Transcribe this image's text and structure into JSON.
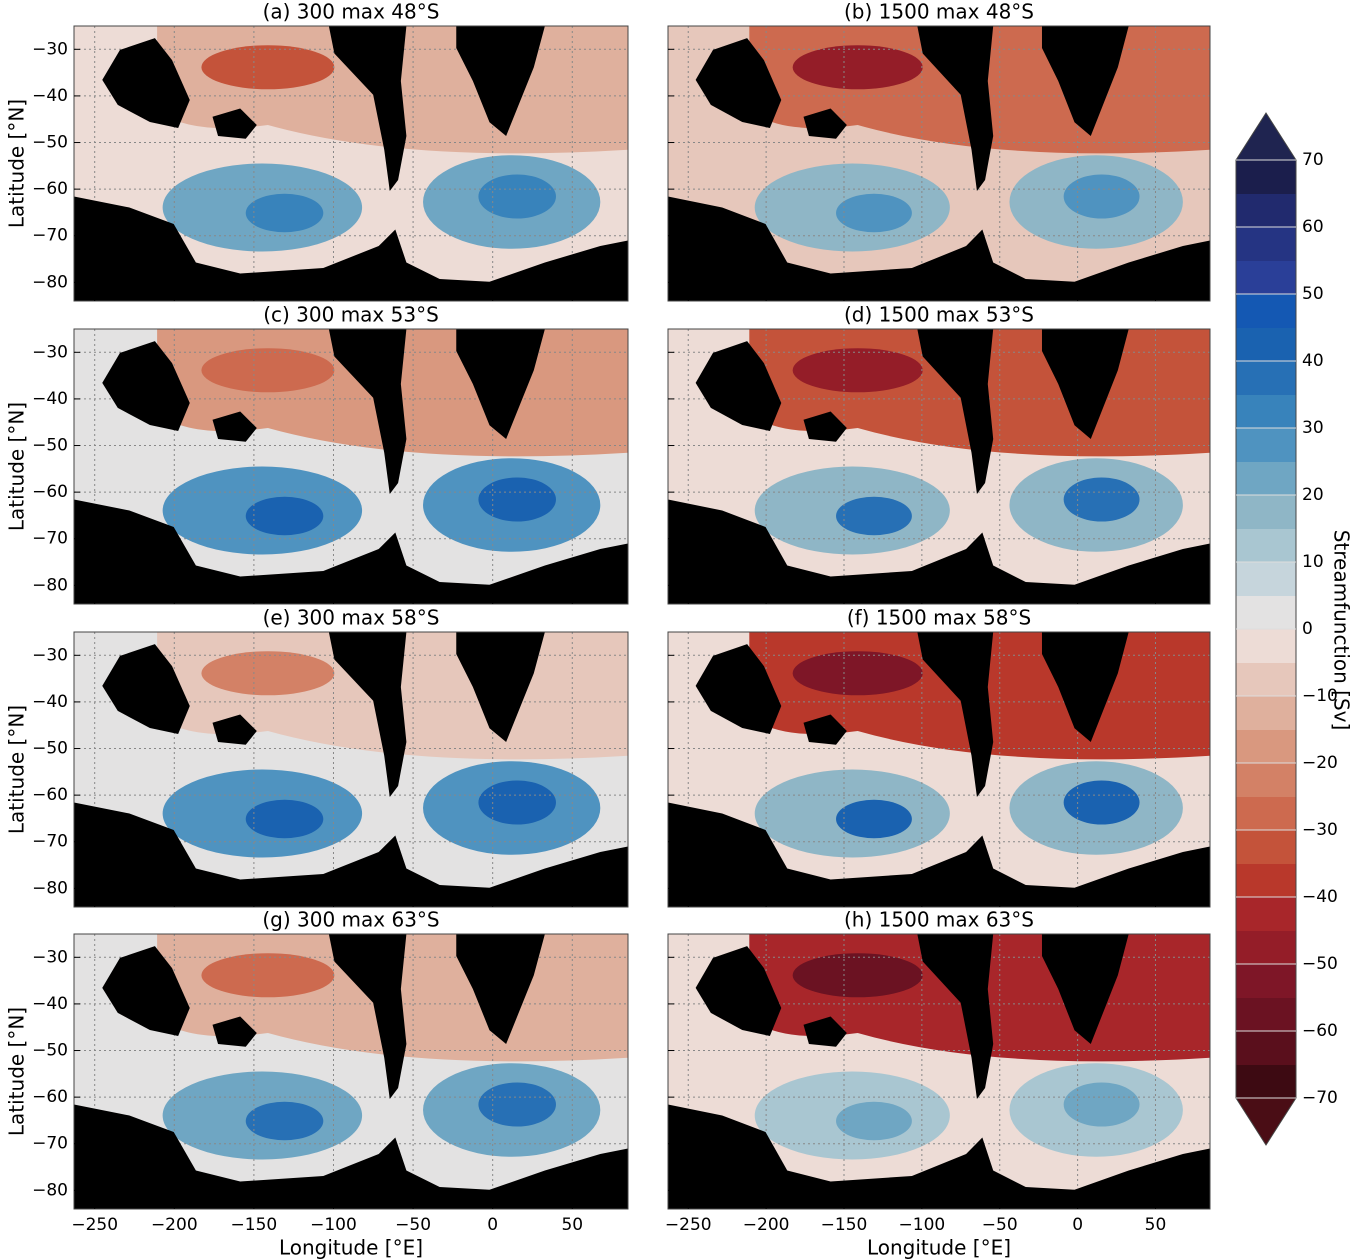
{
  "chart_data": [
    {
      "type": "contour",
      "title": "(a) 300 max 48°S",
      "ylabel": "Latitude [°N]",
      "xlim": [
        -263,
        85
      ],
      "ylim": [
        -84,
        -25
      ],
      "xticks": [
        {
          "value": -250,
          "label": "−250"
        },
        {
          "value": -200,
          "label": "−200"
        },
        {
          "value": -150,
          "label": "−150"
        },
        {
          "value": -100,
          "label": "−100"
        },
        {
          "value": -50,
          "label": "−50"
        },
        0,
        50
      ],
      "yticks": [
        {
          "value": -30,
          "label": "−30"
        },
        {
          "value": -40,
          "label": "−40"
        },
        {
          "value": -50,
          "label": "−50"
        },
        {
          "value": -60,
          "label": "−60"
        },
        {
          "value": -70,
          "label": "−70"
        },
        {
          "value": -80,
          "label": "−80"
        }
      ]
    },
    {
      "type": "contour",
      "title": "(b) 1500 max 48°S",
      "xlim": [
        -263,
        85
      ],
      "ylim": [
        -84,
        -25
      ],
      "xticks": [
        {
          "value": -250,
          "label": "−250"
        },
        {
          "value": -200,
          "label": "−200"
        },
        {
          "value": -150,
          "label": "−150"
        },
        {
          "value": -100,
          "label": "−100"
        },
        {
          "value": -50,
          "label": "−50"
        },
        0,
        50
      ],
      "yticks": [
        {
          "value": -30,
          "label": "−30"
        },
        {
          "value": -40,
          "label": "−40"
        },
        {
          "value": -50,
          "label": "−50"
        },
        {
          "value": -60,
          "label": "−60"
        },
        {
          "value": -70,
          "label": "−70"
        },
        {
          "value": -80,
          "label": "−80"
        }
      ]
    },
    {
      "type": "contour",
      "title": "(c) 300 max 53°S",
      "ylabel": "Latitude [°N]",
      "xlim": [
        -263,
        85
      ],
      "ylim": [
        -84,
        -25
      ],
      "xticks": [
        {
          "value": -250,
          "label": "−250"
        },
        {
          "value": -200,
          "label": "−200"
        },
        {
          "value": -150,
          "label": "−150"
        },
        {
          "value": -100,
          "label": "−100"
        },
        {
          "value": -50,
          "label": "−50"
        },
        0,
        50
      ],
      "yticks": [
        {
          "value": -30,
          "label": "−30"
        },
        {
          "value": -40,
          "label": "−40"
        },
        {
          "value": -50,
          "label": "−50"
        },
        {
          "value": -60,
          "label": "−60"
        },
        {
          "value": -70,
          "label": "−70"
        },
        {
          "value": -80,
          "label": "−80"
        }
      ]
    },
    {
      "type": "contour",
      "title": "(d) 1500 max 53°S",
      "xlim": [
        -263,
        85
      ],
      "ylim": [
        -84,
        -25
      ],
      "xticks": [
        {
          "value": -250,
          "label": "−250"
        },
        {
          "value": -200,
          "label": "−200"
        },
        {
          "value": -150,
          "label": "−150"
        },
        {
          "value": -100,
          "label": "−100"
        },
        {
          "value": -50,
          "label": "−50"
        },
        0,
        50
      ],
      "yticks": [
        {
          "value": -30,
          "label": "−30"
        },
        {
          "value": -40,
          "label": "−40"
        },
        {
          "value": -50,
          "label": "−50"
        },
        {
          "value": -60,
          "label": "−60"
        },
        {
          "value": -70,
          "label": "−70"
        },
        {
          "value": -80,
          "label": "−80"
        }
      ]
    },
    {
      "type": "contour",
      "title": "(e) 300 max 58°S",
      "ylabel": "Latitude [°N]",
      "xlim": [
        -263,
        85
      ],
      "ylim": [
        -84,
        -25
      ],
      "xticks": [
        {
          "value": -250,
          "label": "−250"
        },
        {
          "value": -200,
          "label": "−200"
        },
        {
          "value": -150,
          "label": "−150"
        },
        {
          "value": -100,
          "label": "−100"
        },
        {
          "value": -50,
          "label": "−50"
        },
        0,
        50
      ],
      "yticks": [
        {
          "value": -30,
          "label": "−30"
        },
        {
          "value": -40,
          "label": "−40"
        },
        {
          "value": -50,
          "label": "−50"
        },
        {
          "value": -60,
          "label": "−60"
        },
        {
          "value": -70,
          "label": "−70"
        },
        {
          "value": -80,
          "label": "−80"
        }
      ]
    },
    {
      "type": "contour",
      "title": "(f) 1500 max 58°S",
      "xlim": [
        -263,
        85
      ],
      "ylim": [
        -84,
        -25
      ],
      "xticks": [
        {
          "value": -250,
          "label": "−250"
        },
        {
          "value": -200,
          "label": "−200"
        },
        {
          "value": -150,
          "label": "−150"
        },
        {
          "value": -100,
          "label": "−100"
        },
        {
          "value": -50,
          "label": "−50"
        },
        0,
        50
      ],
      "yticks": [
        {
          "value": -30,
          "label": "−30"
        },
        {
          "value": -40,
          "label": "−40"
        },
        {
          "value": -50,
          "label": "−50"
        },
        {
          "value": -60,
          "label": "−60"
        },
        {
          "value": -70,
          "label": "−70"
        },
        {
          "value": -80,
          "label": "−80"
        }
      ]
    },
    {
      "type": "contour",
      "title": "(g) 300 max 63°S",
      "ylabel": "Latitude [°N]",
      "xlabel": "Longitude [°E]",
      "xlim": [
        -263,
        85
      ],
      "ylim": [
        -84,
        -25
      ],
      "xticks": [
        {
          "value": -250,
          "label": "−250"
        },
        {
          "value": -200,
          "label": "−200"
        },
        {
          "value": -150,
          "label": "−150"
        },
        {
          "value": -100,
          "label": "−100"
        },
        {
          "value": -50,
          "label": "−50"
        },
        0,
        50
      ],
      "yticks": [
        {
          "value": -30,
          "label": "−30"
        },
        {
          "value": -40,
          "label": "−40"
        },
        {
          "value": -50,
          "label": "−50"
        },
        {
          "value": -60,
          "label": "−60"
        },
        {
          "value": -70,
          "label": "−70"
        },
        {
          "value": -80,
          "label": "−80"
        }
      ]
    },
    {
      "type": "contour",
      "title": "(h) 1500 max 63°S",
      "xlabel": "Longitude [°E]",
      "xlim": [
        -263,
        85
      ],
      "ylim": [
        -84,
        -25
      ],
      "xticks": [
        {
          "value": -250,
          "label": "−250"
        },
        {
          "value": -200,
          "label": "−200"
        },
        {
          "value": -150,
          "label": "−150"
        },
        {
          "value": -100,
          "label": "−100"
        },
        {
          "value": -50,
          "label": "−50"
        },
        0,
        50
      ],
      "yticks": [
        {
          "value": -30,
          "label": "−30"
        },
        {
          "value": -40,
          "label": "−40"
        },
        {
          "value": -50,
          "label": "−50"
        },
        {
          "value": -60,
          "label": "−60"
        },
        {
          "value": -70,
          "label": "−70"
        },
        {
          "value": -80,
          "label": "−80"
        }
      ]
    }
  ],
  "colorbar": {
    "label": "Streamfunction [Sv]",
    "lim": [
      -70,
      70
    ],
    "ticks": [
      {
        "value": -70,
        "label": "−70"
      },
      {
        "value": -60,
        "label": "−60"
      },
      {
        "value": -50,
        "label": "−50"
      },
      {
        "value": -40,
        "label": "−40"
      },
      {
        "value": -30,
        "label": "−30"
      },
      {
        "value": -20,
        "label": "−20"
      },
      {
        "value": -10,
        "label": "−10"
      },
      0,
      10,
      20,
      30,
      40,
      50,
      60,
      70
    ],
    "colors": [
      "#3d0a12",
      "#5a0f1c",
      "#6b1222",
      "#7e1627",
      "#941d28",
      "#a8262a",
      "#b9382b",
      "#c4533a",
      "#cd6a4f",
      "#d38166",
      "#d9987f",
      "#dfb09d",
      "#e6c7bb",
      "#eddcd6",
      "#e3e2e2",
      "#c6d5dc",
      "#a9c6d1",
      "#8fb6c6",
      "#6fa6c3",
      "#4f93c0",
      "#3883bb",
      "#2770b5",
      "#1a62b0",
      "#1458b3",
      "#2a3f98",
      "#253483",
      "#212a6e",
      "#1b1e4c"
    ],
    "under_color": "#4a0d15",
    "over_color": "#1f2450"
  }
}
